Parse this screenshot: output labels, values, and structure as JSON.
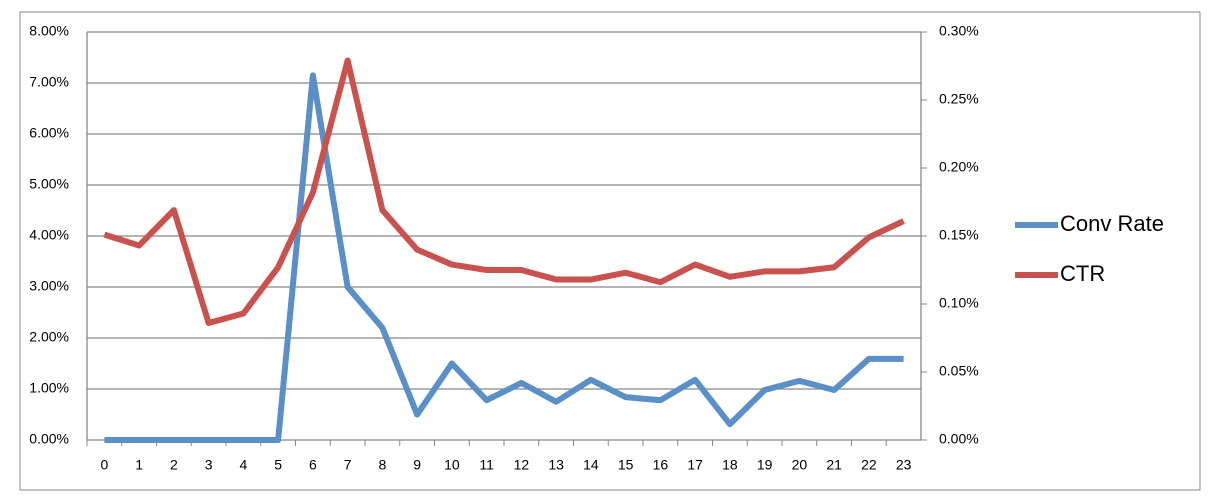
{
  "chart_data": {
    "type": "line",
    "categories": [
      "0",
      "1",
      "2",
      "3",
      "4",
      "5",
      "6",
      "7",
      "8",
      "9",
      "10",
      "11",
      "12",
      "13",
      "14",
      "15",
      "16",
      "17",
      "18",
      "19",
      "20",
      "21",
      "22",
      "23"
    ],
    "series": [
      {
        "name": "Conv Rate",
        "color": "#5b8fc7",
        "values": [
          0,
          0,
          0,
          0,
          0,
          0,
          7.15,
          3.0,
          2.2,
          0.5,
          1.5,
          0.78,
          1.12,
          0.75,
          1.18,
          0.84,
          0.78,
          1.18,
          0.31,
          0.98,
          1.16,
          0.98,
          1.59,
          1.59
        ]
      },
      {
        "name": "CTR",
        "color": "#c9524f",
        "axis": "y2",
        "values": [
          0.151,
          0.143,
          0.169,
          0.086,
          0.093,
          0.127,
          0.182,
          0.279,
          0.169,
          0.14,
          0.129,
          0.125,
          0.125,
          0.118,
          0.118,
          0.123,
          0.116,
          0.129,
          0.12,
          0.124,
          0.124,
          0.127,
          0.149,
          0.161
        ]
      }
    ],
    "ylim": [
      0,
      8
    ],
    "yticks": [
      {
        "value": 0,
        "label": "0.00%"
      },
      {
        "value": 1,
        "label": "1.00%"
      },
      {
        "value": 2,
        "label": "2.00%"
      },
      {
        "value": 3,
        "label": "3.00%"
      },
      {
        "value": 4,
        "label": "4.00%"
      },
      {
        "value": 5,
        "label": "5.00%"
      },
      {
        "value": 6,
        "label": "6.00%"
      },
      {
        "value": 7,
        "label": "7.00%"
      },
      {
        "value": 8,
        "label": "8.00%"
      }
    ],
    "y2lim": [
      0,
      0.3
    ],
    "y2ticks": [
      {
        "value": 0,
        "label": "0.00%"
      },
      {
        "value": 0.05,
        "label": "0.05%"
      },
      {
        "value": 0.1,
        "label": "0.10%"
      },
      {
        "value": 0.15,
        "label": "0.15%"
      },
      {
        "value": 0.2,
        "label": "0.20%"
      },
      {
        "value": 0.25,
        "label": "0.25%"
      },
      {
        "value": 0.3,
        "label": "0.30%"
      }
    ],
    "grid": true,
    "legend": "right"
  }
}
